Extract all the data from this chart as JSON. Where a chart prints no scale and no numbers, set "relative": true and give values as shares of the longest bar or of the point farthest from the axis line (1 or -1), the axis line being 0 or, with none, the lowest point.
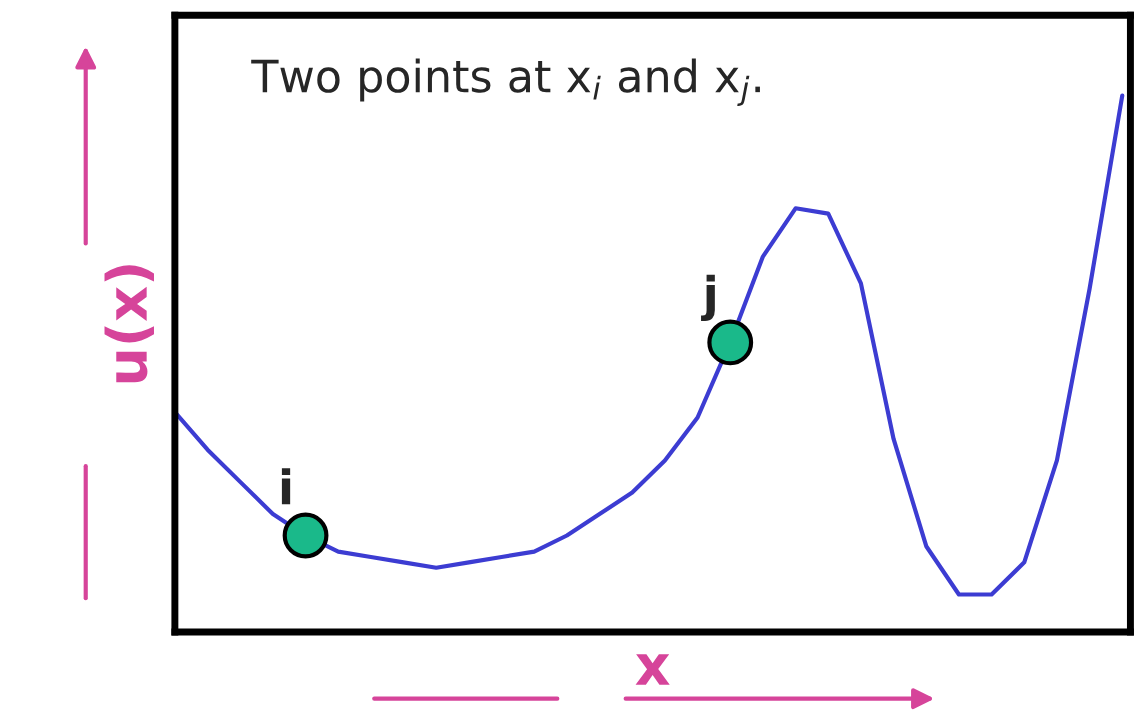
{
  "chart_data": {
    "type": "line",
    "relative": true,
    "xlabel": "x",
    "ylabel": "u(x)",
    "categories": [
      null,
      null,
      null,
      null,
      null,
      null,
      null,
      null,
      null,
      null,
      null,
      null,
      null,
      null,
      null,
      null,
      null,
      null,
      null,
      null,
      null,
      null,
      null,
      null,
      null,
      null,
      null,
      null,
      null,
      null
    ],
    "series": [
      {
        "color": "#3c3cd2",
        "values": [
          0.41,
          0.34,
          0.28,
          0.22,
          0.18,
          0.15,
          0.14,
          0.13,
          0.12,
          0.13,
          0.14,
          0.15,
          0.18,
          0.22,
          0.26,
          0.32,
          0.4,
          0.54,
          0.7,
          0.79,
          0.78,
          0.65,
          0.36,
          0.16,
          0.07,
          0.07,
          0.13,
          0.32,
          0.64,
          1.0
        ]
      }
    ],
    "annotations": [
      "Two points at x$_{i}$ and x$_{j}$.",
      {
        "text": "i",
        "y": 0.18
      },
      {
        "text": "j",
        "y": 0.54
      }
    ],
    "legend": false,
    "grid": false
  }
}
